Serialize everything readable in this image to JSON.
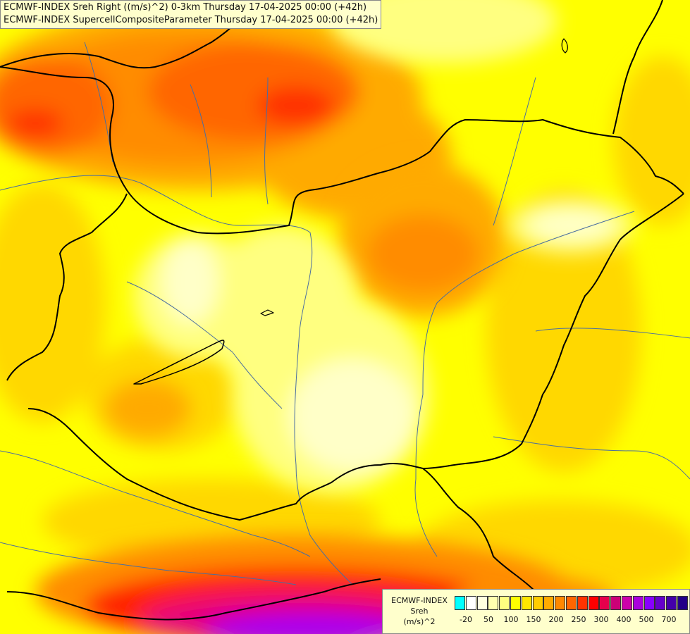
{
  "title": {
    "line1": "ECMWF-INDEX Sreh Right ((m/s)^2) 0-3km Thursday 17-04-2025 00:00 (+42h)",
    "line2": "ECMWF-INDEX SupercellCompositeParameter Thursday 17-04-2025 00:00 (+42h)"
  },
  "legend": {
    "title_line1": "ECMWF-INDEX",
    "title_line2": "Sreh",
    "title_line3": "(m/s)^2",
    "swatch_colors": [
      "#00ffff",
      "#ffffff",
      "#ffffe0",
      "#ffffb0",
      "#ffff80",
      "#ffff00",
      "#ffe600",
      "#ffcc00",
      "#ffaa00",
      "#ff8800",
      "#ff6600",
      "#ff3300",
      "#ff0000",
      "#e6004c",
      "#cc0077",
      "#cc00aa",
      "#aa00dd",
      "#8800ff",
      "#6600cc",
      "#4400aa",
      "#220088"
    ],
    "ticks": [
      "-20",
      "50",
      "100",
      "150",
      "200",
      "250",
      "300",
      "400",
      "500",
      "700"
    ]
  },
  "palette": {
    "pale": "#ffffc8",
    "light_yellow": "#ffff80",
    "yellow": "#ffff00",
    "gold": "#ffd800",
    "orange_light": "#ffaa00",
    "orange": "#ff8c00",
    "orange_red": "#ff6600",
    "red": "#ff2000",
    "magenta": "#e6007a",
    "violet": "#aa00ee",
    "border_line": "#000000",
    "river_line": "#4a6ea0"
  }
}
